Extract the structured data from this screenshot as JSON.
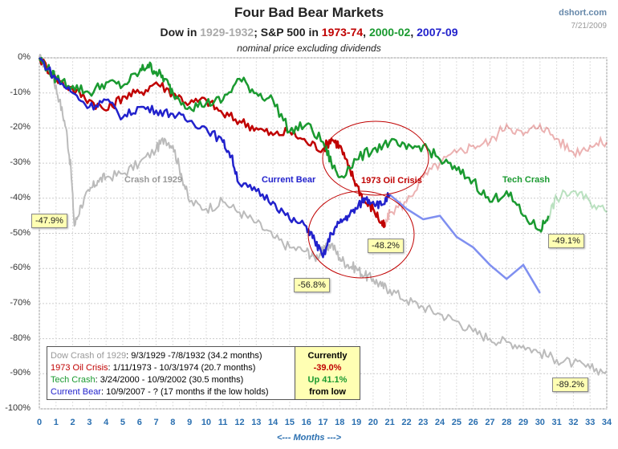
{
  "header": {
    "title": "Four Bad Bear Markets",
    "subtitle_parts": [
      {
        "text": "Dow in ",
        "color": "#222222"
      },
      {
        "text": "1929-1932",
        "color": "#aaaaaa"
      },
      {
        "text": "; S&P 500 in ",
        "color": "#222222"
      },
      {
        "text": "1973-74",
        "color": "#c00000"
      },
      {
        "text": ", ",
        "color": "#222222"
      },
      {
        "text": "2000-02",
        "color": "#1a9a30"
      },
      {
        "text": ", ",
        "color": "#222222"
      },
      {
        "text": "2007-09",
        "color": "#2222cc"
      }
    ],
    "note": "nominal price excluding dividends",
    "source": "dshort.com",
    "date": "7/21/2009"
  },
  "chart_data": {
    "type": "line",
    "title": "Four Bad Bear Markets",
    "xlabel": "<--- Months --->",
    "ylabel": "",
    "xlim": [
      0,
      34
    ],
    "ylim": [
      -100,
      0
    ],
    "x_ticks": [
      "0",
      "1",
      "2",
      "3",
      "4",
      "5",
      "6",
      "7",
      "8",
      "9",
      "10",
      "11",
      "12",
      "13",
      "14",
      "15",
      "16",
      "17",
      "18",
      "19",
      "20",
      "21",
      "22",
      "23",
      "24",
      "25",
      "26",
      "27",
      "28",
      "29",
      "30",
      "31",
      "32",
      "33",
      "34"
    ],
    "y_ticks": [
      "0%",
      "-10%",
      "-20%",
      "-30%",
      "-40%",
      "-50%",
      "-60%",
      "-70%",
      "-80%",
      "-90%",
      "-100%"
    ],
    "grid": true,
    "series": [
      {
        "name": "Dow Crash of 1929",
        "color": "#bbbbbb",
        "x": [
          0,
          0.3,
          0.8,
          1.2,
          1.6,
          1.9,
          2.1,
          2.5,
          3,
          3.5,
          4,
          5,
          6,
          7,
          7.5,
          8,
          8.5,
          9,
          10,
          11,
          12,
          13,
          14,
          15,
          16,
          16.5,
          17,
          17.5,
          18,
          18.5,
          19,
          19.5,
          20,
          20.5,
          21,
          22,
          23,
          24,
          25,
          26,
          27,
          28,
          29,
          30,
          31,
          32,
          33,
          34
        ],
        "y": [
          0,
          -2,
          -5,
          -12,
          -20,
          -32,
          -47.9,
          -42,
          -38,
          -35,
          -34,
          -33,
          -30,
          -26,
          -23,
          -25,
          -33,
          -41,
          -43,
          -41,
          -44,
          -47,
          -51,
          -54,
          -55,
          -57,
          -55,
          -53,
          -57,
          -59,
          -60,
          -62,
          -63,
          -65,
          -66,
          -69,
          -71,
          -73,
          -75,
          -78,
          -80,
          -81,
          -82,
          -84,
          -86,
          -87,
          -88.5,
          -89.2
        ]
      },
      {
        "name": "1973 Oil Crisis",
        "color": "#c00000",
        "x": [
          0,
          1,
          2,
          3,
          4,
          5,
          6,
          7,
          8,
          9,
          10,
          11,
          12,
          13,
          14,
          15,
          16,
          17,
          17.5,
          18,
          18.5,
          19,
          19.5,
          20,
          20.5,
          20.7,
          21,
          22,
          23,
          24,
          25,
          26,
          27,
          28,
          29,
          30,
          31,
          32,
          33,
          34
        ],
        "y": [
          0,
          -6,
          -9,
          -12,
          -15,
          -11,
          -10,
          -7,
          -10,
          -13,
          -12,
          -16,
          -18,
          -20,
          -22,
          -21,
          -24,
          -26,
          -23,
          -25,
          -31,
          -36,
          -41,
          -43,
          -47,
          -48.2,
          -44,
          -41,
          -34,
          -30,
          -27,
          -25,
          -24,
          -19,
          -22,
          -19,
          -23,
          -27,
          -25,
          -24
        ],
        "faded_after_x": 20.7
      },
      {
        "name": "Tech Crash",
        "color": "#1a9a30",
        "x": [
          0,
          0.5,
          1,
          2,
          3,
          4,
          5,
          6,
          6.5,
          7,
          7.5,
          8,
          9,
          10,
          11,
          12,
          13,
          14,
          15,
          16,
          17,
          17.5,
          18,
          19,
          20,
          21,
          22,
          23,
          24,
          25,
          26,
          27,
          28,
          29,
          30,
          30.5,
          31,
          32,
          33,
          34
        ],
        "y": [
          0,
          -3,
          -6,
          -8,
          -10,
          -7,
          -8,
          -4,
          -2,
          -4,
          -6,
          -10,
          -14,
          -13,
          -12,
          -6,
          -10,
          -12,
          -21,
          -19,
          -24,
          -30,
          -34,
          -29,
          -26,
          -24,
          -26,
          -25,
          -29,
          -32,
          -35,
          -41,
          -38,
          -45,
          -49.1,
          -45,
          -40,
          -38,
          -41,
          -44
        ],
        "faded_after_x": 30.5
      },
      {
        "name": "Current Bear",
        "color": "#2222cc",
        "x": [
          0,
          1,
          2,
          3,
          4,
          5,
          6,
          7,
          8,
          9,
          10,
          11,
          11.5,
          12,
          13,
          14,
          15,
          16,
          16.5,
          17,
          17.5,
          18,
          18.5,
          19,
          19.5,
          20,
          20.5,
          21,
          22,
          23,
          24,
          25,
          26,
          27,
          28,
          29,
          30
        ],
        "y": [
          0,
          -6,
          -10,
          -14,
          -12,
          -17,
          -14,
          -15,
          -16,
          -18,
          -20,
          -24,
          -28,
          -36,
          -38,
          -41,
          -46,
          -48,
          -52,
          -56.8,
          -50,
          -47,
          -45,
          -43,
          -40,
          -41,
          -42,
          -39,
          -43,
          -46,
          -45,
          -51,
          -54,
          -59,
          -63,
          -59,
          -67
        ],
        "dashed_after_x": 21
      }
    ],
    "annotations": [
      {
        "text": "Crash of 1929",
        "color": "#999999"
      },
      {
        "text": "Current Bear",
        "color": "#2222cc"
      },
      {
        "text": "1973 Oil Crisis",
        "color": "#c00000"
      },
      {
        "text": "Tech Crash",
        "color": "#1a9a30"
      }
    ],
    "callouts": [
      "-47.9%",
      "-56.8%",
      "-48.2%",
      "-49.1%",
      "-89.2%"
    ]
  },
  "legend": {
    "rows": [
      {
        "name": "Dow Crash of 1929",
        "detail": ": 9/3/1929  -7/8/1932  (34.2 months)",
        "color": "#999999"
      },
      {
        "name": "1973 Oil Crisis",
        "detail": ": 1/11/1973  - 10/3/1974  (20.7 months)",
        "color": "#c00000"
      },
      {
        "name": "Tech Crash",
        "detail": ":  3/24/2000  - 10/9/2002  (30.5 months)",
        "color": "#1a9a30"
      },
      {
        "name": "Current Bear",
        "detail": ": 10/9/2007  - ?  (17 months if the low holds)",
        "color": "#2222cc"
      }
    ],
    "status": {
      "line1": "Currently",
      "line2": "-39.0%",
      "line3": "Up 41.1%",
      "line4": "from low",
      "line2_color": "#c00000",
      "line3_color": "#1a9a30"
    }
  }
}
